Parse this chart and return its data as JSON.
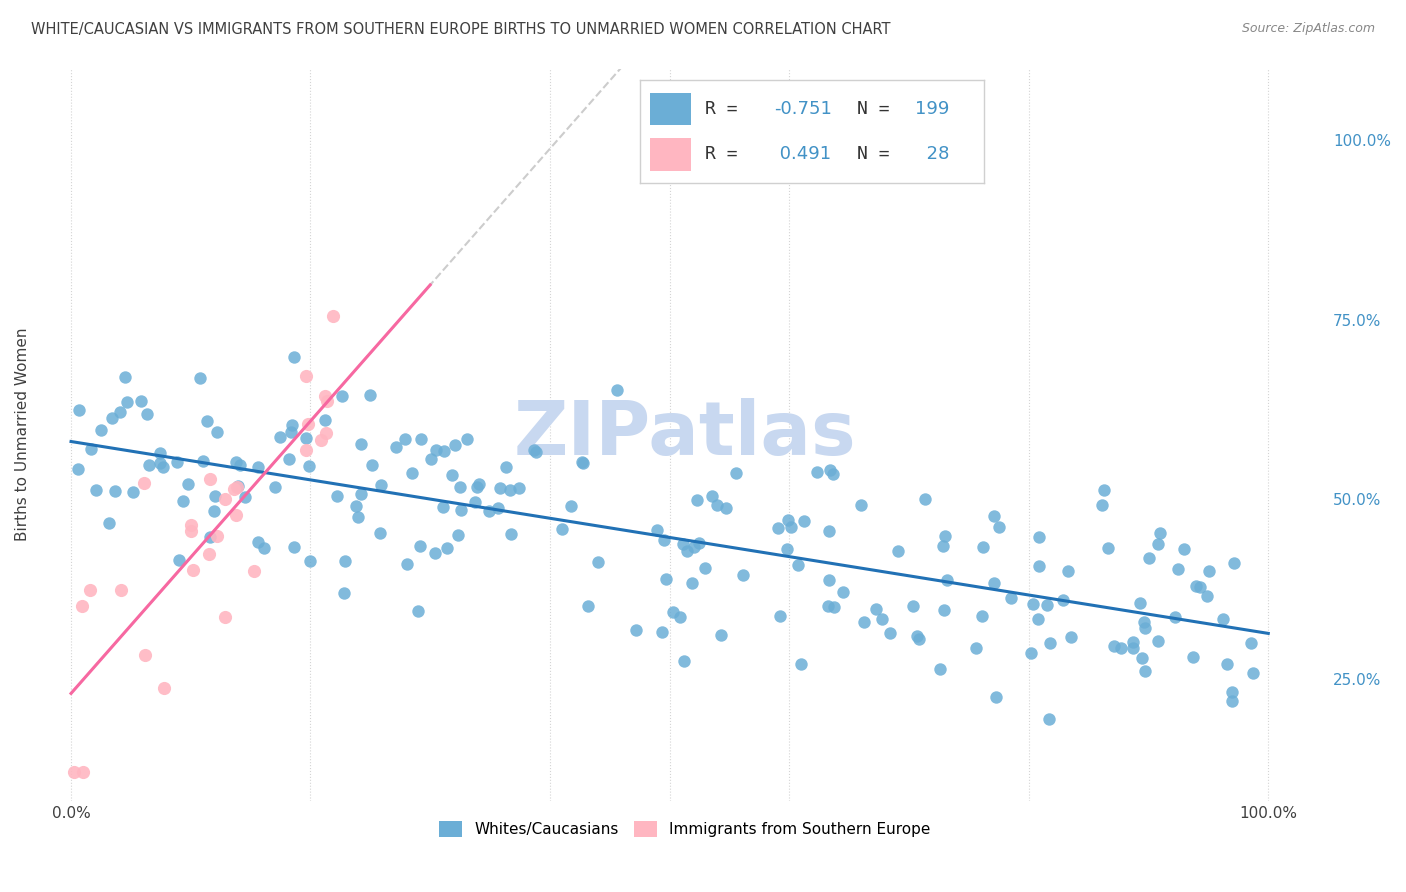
{
  "title": "WHITE/CAUCASIAN VS IMMIGRANTS FROM SOUTHERN EUROPE BIRTHS TO UNMARRIED WOMEN CORRELATION CHART",
  "source": "Source: ZipAtlas.com",
  "ylabel": "Births to Unmarried Women",
  "ytick_labels": [
    "100.0%",
    "75.0%",
    "50.0%",
    "25.0%"
  ],
  "ytick_values": [
    1.0,
    0.75,
    0.5,
    0.25
  ],
  "legend_label1": "Whites/Caucasians",
  "legend_label2": "Immigrants from Southern Europe",
  "R1": -0.751,
  "N1": 199,
  "R2": 0.491,
  "N2": 28,
  "blue_color": "#6baed6",
  "pink_color": "#ffb6c1",
  "blue_line_color": "#2171b5",
  "pink_line_color": "#f768a1",
  "gray_dash_color": "#c0c0c0",
  "watermark": "ZIPatlas",
  "watermark_color": "#c8d8f0",
  "background_color": "#ffffff",
  "grid_color": "#d0d0d0",
  "title_color": "#404040",
  "axis_label_color": "#404040",
  "tick_label_color_blue": "#4292c6"
}
